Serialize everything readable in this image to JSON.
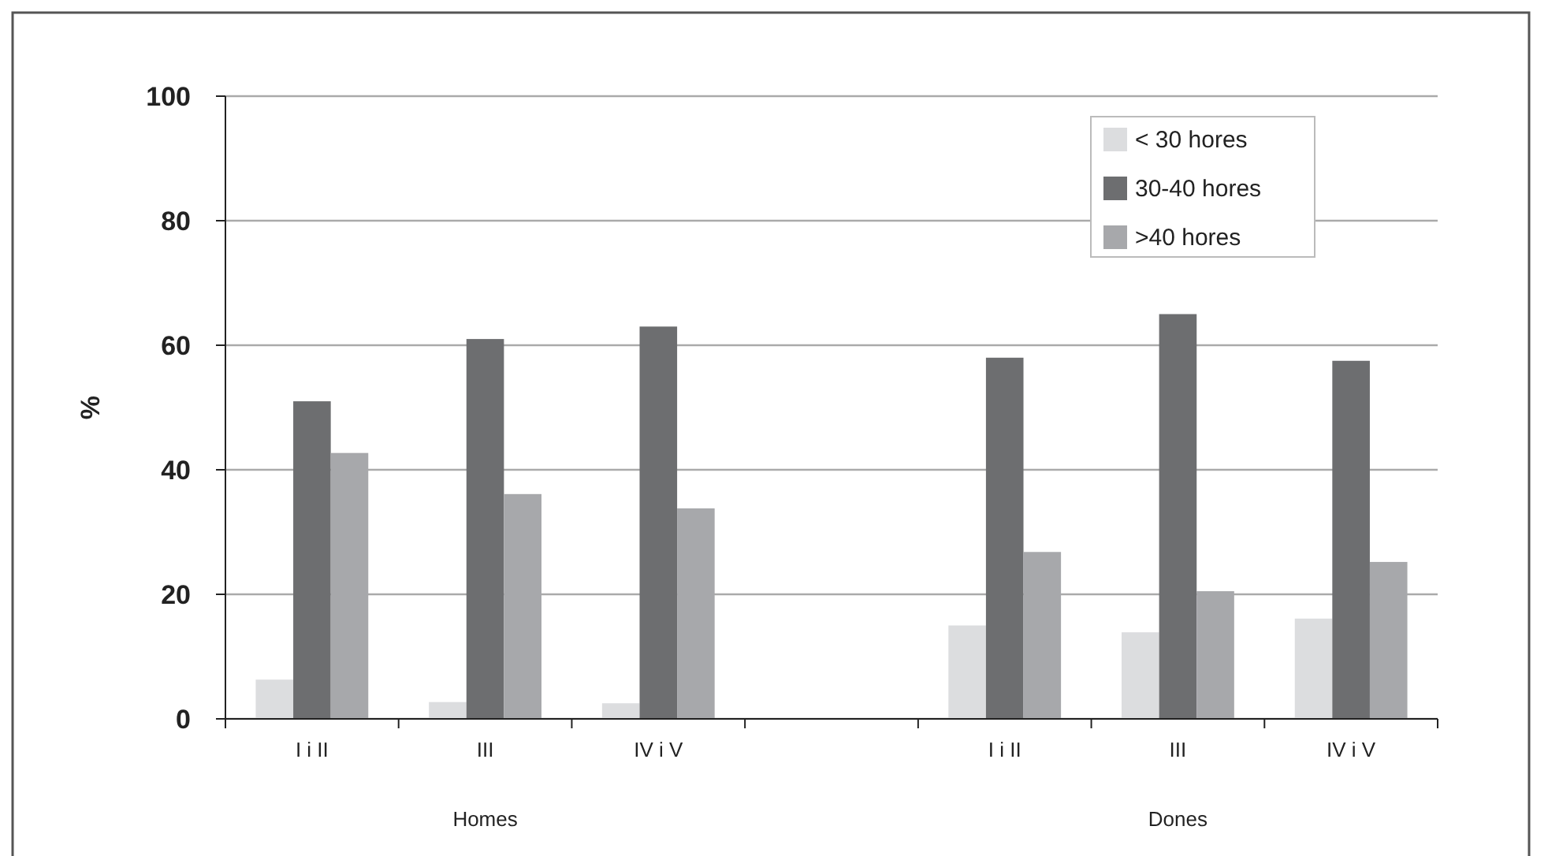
{
  "chart_data": {
    "type": "bar",
    "ylabel": "%",
    "categories": [
      "I i II",
      "III",
      "IV i V",
      null,
      "I i II",
      "III",
      "IV i V"
    ],
    "series": [
      {
        "name": "< 30 hores",
        "color": "#dcdddf",
        "values": [
          6.3,
          2.7,
          2.5,
          null,
          15,
          13.9,
          16.1
        ]
      },
      {
        "name": "30-40 hores",
        "color": "#6d6e70",
        "values": [
          51,
          61,
          63,
          null,
          58,
          65,
          57.5
        ]
      },
      {
        "name": ">40 hores",
        "color": "#a7a8ab",
        "values": [
          42.7,
          36.1,
          33.8,
          null,
          26.8,
          20.5,
          25.2
        ]
      }
    ],
    "ylim": [
      0,
      100
    ],
    "yticks": [
      0,
      20,
      40,
      60,
      80,
      100
    ],
    "grid": "y",
    "legend": "top right",
    "annotations": [
      "Homes",
      "Dones"
    ]
  }
}
